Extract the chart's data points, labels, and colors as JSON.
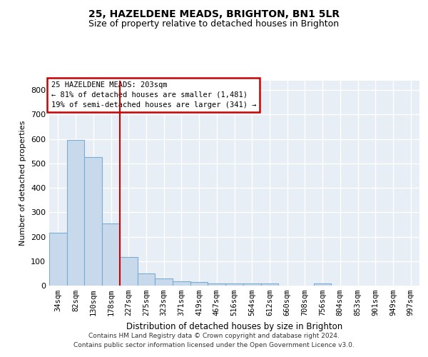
{
  "title": "25, HAZELDENE MEADS, BRIGHTON, BN1 5LR",
  "subtitle": "Size of property relative to detached houses in Brighton",
  "xlabel": "Distribution of detached houses by size in Brighton",
  "ylabel": "Number of detached properties",
  "bar_color": "#c9d9ec",
  "bar_edge_color": "#7aadd4",
  "grid_color": "#c0c8d8",
  "annotation_box_color": "#cc0000",
  "vline_color": "#cc0000",
  "categories": [
    "34sqm",
    "82sqm",
    "130sqm",
    "178sqm",
    "227sqm",
    "275sqm",
    "323sqm",
    "371sqm",
    "419sqm",
    "467sqm",
    "516sqm",
    "564sqm",
    "612sqm",
    "660sqm",
    "708sqm",
    "756sqm",
    "804sqm",
    "853sqm",
    "901sqm",
    "949sqm",
    "997sqm"
  ],
  "values": [
    215,
    597,
    525,
    253,
    117,
    50,
    30,
    18,
    14,
    10,
    9,
    9,
    9,
    0,
    0,
    8,
    0,
    0,
    0,
    0,
    0
  ],
  "ylim": [
    0,
    840
  ],
  "yticks": [
    0,
    100,
    200,
    300,
    400,
    500,
    600,
    700,
    800
  ],
  "vline_pos": 3.5,
  "annotation_text": "25 HAZELDENE MEADS: 203sqm\n← 81% of detached houses are smaller (1,481)\n19% of semi-detached houses are larger (341) →",
  "footnote": "Contains HM Land Registry data © Crown copyright and database right 2024.\nContains public sector information licensed under the Open Government Licence v3.0.",
  "bg_color": "#e8eef5"
}
